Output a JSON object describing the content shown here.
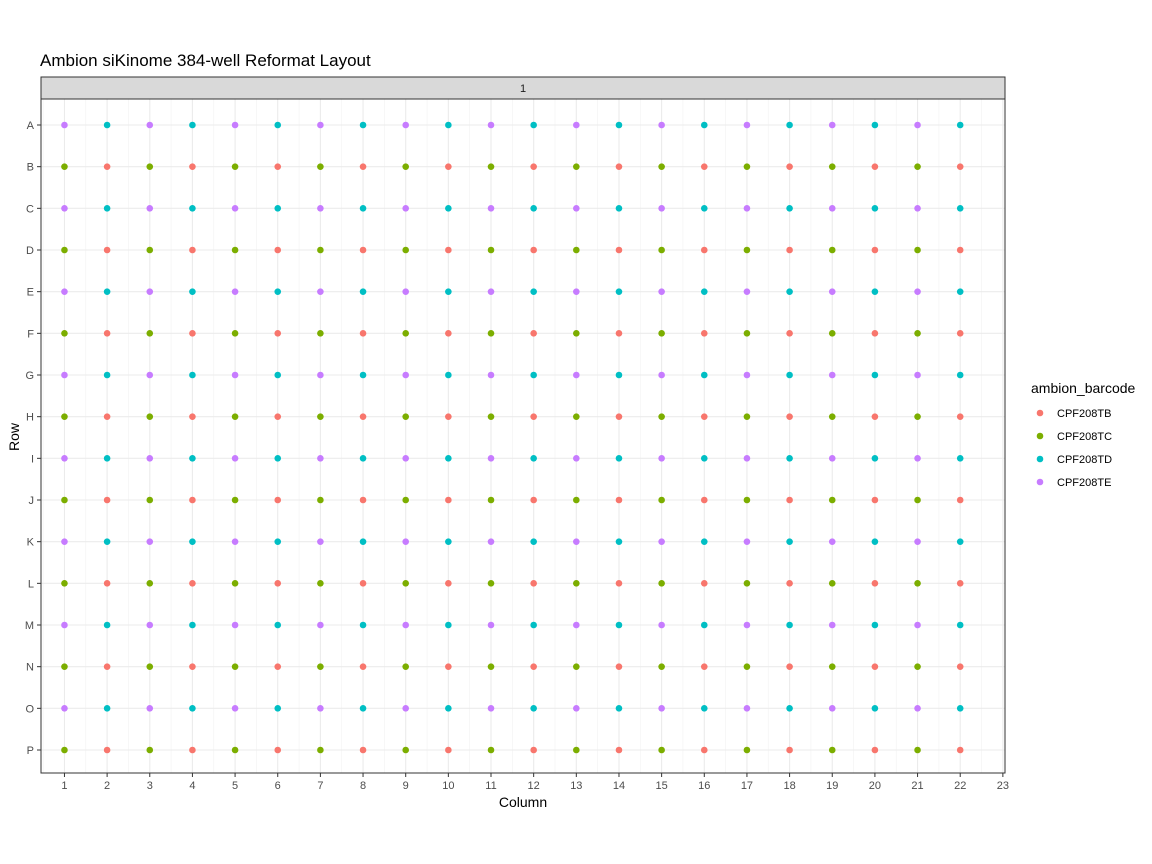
{
  "chart_data": {
    "type": "scatter",
    "title": "Ambion siKinome 384-well Reformat Layout",
    "xlabel": "Column",
    "ylabel": "Row",
    "facet_label": "1",
    "x_ticks": [
      1,
      2,
      3,
      4,
      5,
      6,
      7,
      8,
      9,
      10,
      11,
      12,
      13,
      14,
      15,
      16,
      17,
      18,
      19,
      20,
      21,
      22,
      23
    ],
    "xlim": [
      0.45,
      23.05
    ],
    "rows": [
      "A",
      "B",
      "C",
      "D",
      "E",
      "F",
      "G",
      "H",
      "I",
      "J",
      "K",
      "L",
      "M",
      "N",
      "O",
      "P"
    ],
    "columns": [
      1,
      2,
      3,
      4,
      5,
      6,
      7,
      8,
      9,
      10,
      11,
      12,
      13,
      14,
      15,
      16,
      17,
      18,
      19,
      20,
      21,
      22
    ],
    "grid": true,
    "legend": {
      "title": "ambion_barcode",
      "position": "right",
      "entries": [
        {
          "name": "CPF208TB",
          "color": "#F8766D"
        },
        {
          "name": "CPF208TC",
          "color": "#7CAE00"
        },
        {
          "name": "CPF208TD",
          "color": "#00BFC4"
        },
        {
          "name": "CPF208TE",
          "color": "#C77CFF"
        }
      ]
    },
    "pattern_rule": "odd row & odd column = CPF208TE; odd row & even column = CPF208TD; even row & odd column = CPF208TC; even row & even column = CPF208TB"
  }
}
